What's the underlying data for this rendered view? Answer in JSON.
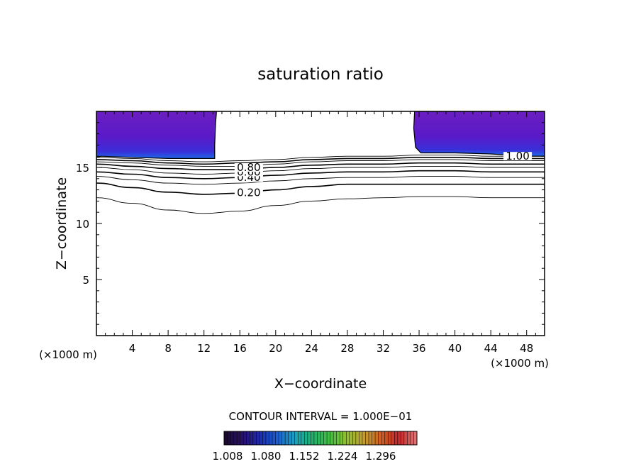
{
  "chart_data": {
    "type": "contour",
    "title": "saturation ratio",
    "xlabel": "X−coordinate",
    "ylabel": "Z−coordinate",
    "x_unit_left": "(×1000 m)",
    "x_unit_right": "(×1000 m)",
    "xlim": [
      0,
      50
    ],
    "ylim": [
      0,
      20
    ],
    "x_ticks": [
      4,
      8,
      12,
      16,
      20,
      24,
      28,
      32,
      36,
      40,
      44,
      48
    ],
    "y_ticks": [
      5,
      10,
      15
    ],
    "contour_interval_label": "CONTOUR INTERVAL = 1.000E−01",
    "contour_labels": [
      {
        "text": "0.20",
        "x": 17.0,
        "z": 12.75
      },
      {
        "text": "0.40",
        "x": 17.0,
        "z": 14.1
      },
      {
        "text": "0.60",
        "x": 17.0,
        "z": 14.6
      },
      {
        "text": "0.80",
        "x": 17.0,
        "z": 15.0
      },
      {
        "text": "1.00",
        "x": 47.0,
        "z": 16.0
      }
    ],
    "contour_lines": [
      {
        "level": 0.1,
        "x": [
          0,
          4,
          8,
          12,
          16,
          20,
          24,
          28,
          32,
          36,
          40,
          44,
          48,
          50
        ],
        "z": [
          12.3,
          11.8,
          11.2,
          10.9,
          11.1,
          11.6,
          12.0,
          12.2,
          12.3,
          12.4,
          12.4,
          12.3,
          12.3,
          12.3
        ]
      },
      {
        "level": 0.2,
        "x": [
          0,
          4,
          8,
          12,
          16,
          20,
          24,
          28,
          32,
          36,
          40,
          44,
          48,
          50
        ],
        "z": [
          13.6,
          13.2,
          12.8,
          12.6,
          12.7,
          13.0,
          13.3,
          13.5,
          13.5,
          13.5,
          13.5,
          13.5,
          13.5,
          13.5
        ]
      },
      {
        "level": 0.3,
        "x": [
          0,
          4,
          8,
          12,
          16,
          20,
          24,
          28,
          32,
          36,
          40,
          44,
          48,
          50
        ],
        "z": [
          14.2,
          13.9,
          13.6,
          13.5,
          13.6,
          13.8,
          14.0,
          14.1,
          14.1,
          14.2,
          14.2,
          14.1,
          14.1,
          14.1
        ]
      },
      {
        "level": 0.4,
        "x": [
          0,
          4,
          8,
          12,
          16,
          20,
          24,
          28,
          32,
          36,
          40,
          44,
          48,
          50
        ],
        "z": [
          14.6,
          14.4,
          14.1,
          14.0,
          14.1,
          14.3,
          14.5,
          14.6,
          14.6,
          14.7,
          14.7,
          14.6,
          14.6,
          14.6
        ]
      },
      {
        "level": 0.5,
        "x": [
          0,
          4,
          8,
          12,
          16,
          20,
          24,
          28,
          32,
          36,
          40,
          44,
          48,
          50
        ],
        "z": [
          15.0,
          14.8,
          14.5,
          14.4,
          14.5,
          14.7,
          14.9,
          15.0,
          15.0,
          15.1,
          15.1,
          15.0,
          15.0,
          15.0
        ]
      },
      {
        "level": 0.6,
        "x": [
          0,
          4,
          8,
          12,
          16,
          20,
          24,
          28,
          32,
          36,
          40,
          44,
          48,
          50
        ],
        "z": [
          15.3,
          15.1,
          14.9,
          14.8,
          14.8,
          15.0,
          15.2,
          15.3,
          15.3,
          15.4,
          15.4,
          15.3,
          15.3,
          15.3
        ]
      },
      {
        "level": 0.7,
        "x": [
          0,
          4,
          8,
          12,
          16,
          20,
          24,
          28,
          32,
          36,
          40,
          44,
          48,
          50
        ],
        "z": [
          15.5,
          15.4,
          15.2,
          15.1,
          15.1,
          15.3,
          15.5,
          15.6,
          15.6,
          15.7,
          15.7,
          15.6,
          15.6,
          15.6
        ]
      },
      {
        "level": 0.8,
        "x": [
          0,
          4,
          8,
          12,
          16,
          20,
          24,
          28,
          32,
          36,
          40,
          44,
          48,
          50
        ],
        "z": [
          15.7,
          15.6,
          15.4,
          15.3,
          15.4,
          15.5,
          15.7,
          15.8,
          15.8,
          15.9,
          15.9,
          15.8,
          15.8,
          15.8
        ]
      },
      {
        "level": 0.9,
        "x": [
          0,
          4,
          8,
          12,
          16,
          20,
          24,
          28,
          32,
          36,
          40,
          44,
          48,
          50
        ],
        "z": [
          15.9,
          15.8,
          15.6,
          15.5,
          15.6,
          15.7,
          15.9,
          16.0,
          16.0,
          16.1,
          16.1,
          16.0,
          16.0,
          16.0
        ]
      }
    ],
    "saturated_regions": [
      {
        "x": [
          0,
          0.5,
          4,
          8,
          12,
          13.2,
          13.2,
          13.3,
          13.4,
          0
        ],
        "z": [
          15.9,
          16.0,
          15.9,
          15.8,
          15.8,
          15.8,
          17.0,
          19.0,
          20.0,
          20.0
        ]
      },
      {
        "x": [
          35.5,
          35.4,
          35.6,
          36.2,
          40,
          44,
          48,
          50,
          50,
          35.7
        ],
        "z": [
          20.0,
          18.5,
          16.8,
          16.3,
          16.3,
          16.2,
          16.0,
          16.0,
          20.0,
          20.0
        ]
      }
    ],
    "colorbar": {
      "ticks": [
        "1.008",
        "1.080",
        "1.152",
        "1.224",
        "1.296"
      ],
      "colors": [
        "#1a0a2e",
        "#2a1070",
        "#1e2bb0",
        "#1a60d0",
        "#1aa0c0",
        "#20b070",
        "#40c040",
        "#90c030",
        "#c0a030",
        "#d06020",
        "#c02828",
        "#e07070"
      ]
    },
    "fill_colors": {
      "outer": "#6a1ec0",
      "mid": "#5a1ac8",
      "inner": "#3a2ed8",
      "edge": "#1e6ae8"
    }
  }
}
